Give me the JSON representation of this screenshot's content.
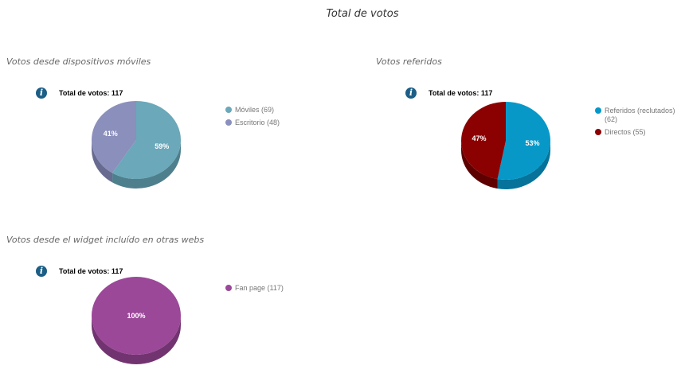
{
  "page_title": "Total de votos",
  "chart_data": [
    {
      "type": "pie",
      "title": "Votos desde dispositivos móviles",
      "total_label": "Total de votos: 117",
      "series": [
        {
          "label": "Móviles (69)",
          "value": 69,
          "pct_label": "59%",
          "color": "#6aa8ba",
          "dark": "#4e7f8d"
        },
        {
          "label": "Escritorio (48)",
          "value": 48,
          "pct_label": "41%",
          "color": "#8b8fbc",
          "dark": "#686b90"
        }
      ]
    },
    {
      "type": "pie",
      "title": "Votos referidos",
      "total_label": "Total de votos: 117",
      "series": [
        {
          "label": "Referidos (reclutados) (62)",
          "value": 62,
          "pct_label": "53%",
          "color": "#0798c8",
          "dark": "#05739a"
        },
        {
          "label": "Directos (55)",
          "value": 55,
          "pct_label": "47%",
          "color": "#8b0000",
          "dark": "#5e0000"
        }
      ]
    },
    {
      "type": "pie",
      "title": "Votos desde el widget incluído en otras webs",
      "total_label": "Total de votos: 117",
      "series": [
        {
          "label": "Fan page (117)",
          "value": 117,
          "pct_label": "100%",
          "color": "#9b4898",
          "dark": "#723470"
        }
      ]
    }
  ]
}
